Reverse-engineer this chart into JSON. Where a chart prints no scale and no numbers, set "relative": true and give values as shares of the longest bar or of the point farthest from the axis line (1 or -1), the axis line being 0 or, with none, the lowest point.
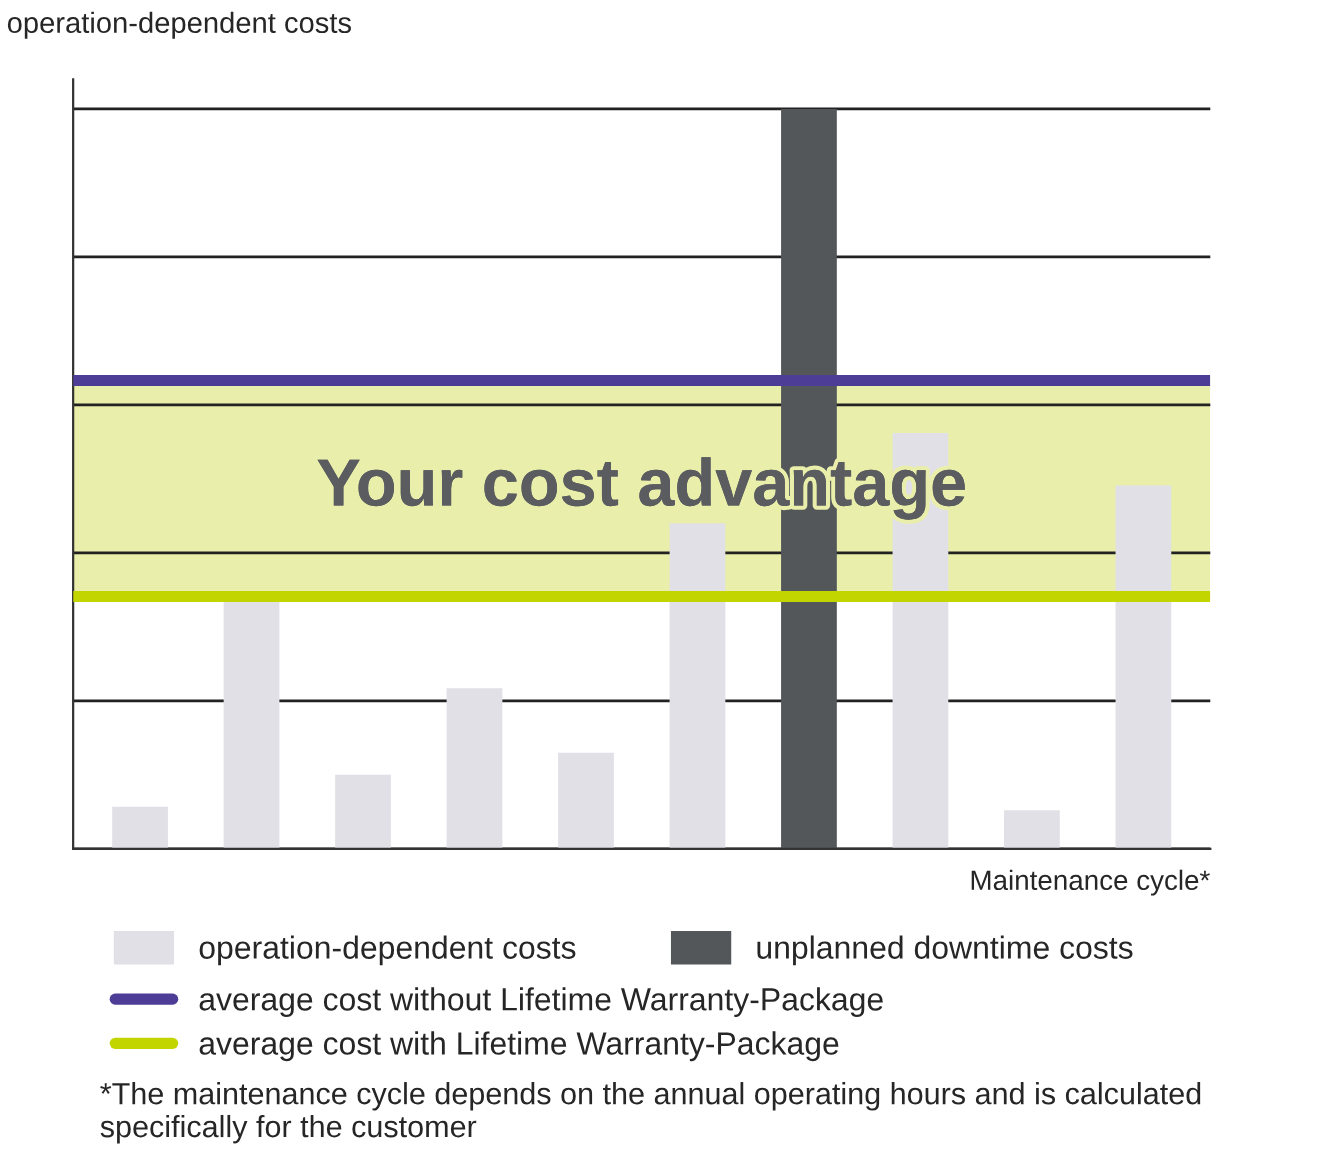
{
  "chart_data": {
    "type": "bar",
    "relative": true,
    "ylabel": "operation-dependent costs",
    "xlabel": "Maintenance cycle*",
    "categories": [
      null,
      null,
      null,
      null,
      null,
      null,
      null,
      null,
      null,
      null
    ],
    "series": [
      {
        "name": "operation-dependent costs",
        "color": "#e0e0e6",
        "values": [
          0.057,
          0.335,
          0.1,
          0.217,
          0.13,
          0.44,
          0,
          0.562,
          0.052,
          0.491
        ]
      },
      {
        "name": "unplanned downtime costs",
        "color": "#53575a",
        "values": [
          0,
          0,
          0,
          0,
          0,
          0,
          1,
          0,
          0,
          0
        ]
      }
    ],
    "ref_lines": [
      {
        "axis": "y",
        "value": 0.633,
        "label": "average cost without Lifetime Warranty-Package",
        "color": "#4e3d96",
        "line_style": "solid"
      },
      {
        "axis": "y",
        "value": 0.341,
        "label": "average cost with Lifetime Warranty-Package",
        "color": "#c2d500",
        "line_style": "solid"
      }
    ],
    "bands": [
      {
        "axis": "y",
        "from": 0.341,
        "to": 0.633,
        "label": "Your cost advantage",
        "color": "#e9efaa"
      }
    ],
    "grid": "y",
    "stacked": true,
    "legend": "bottom",
    "annotations": [
      "*The maintenance cycle depends on the annual operating hours and is calculated specifically for the customer"
    ]
  }
}
